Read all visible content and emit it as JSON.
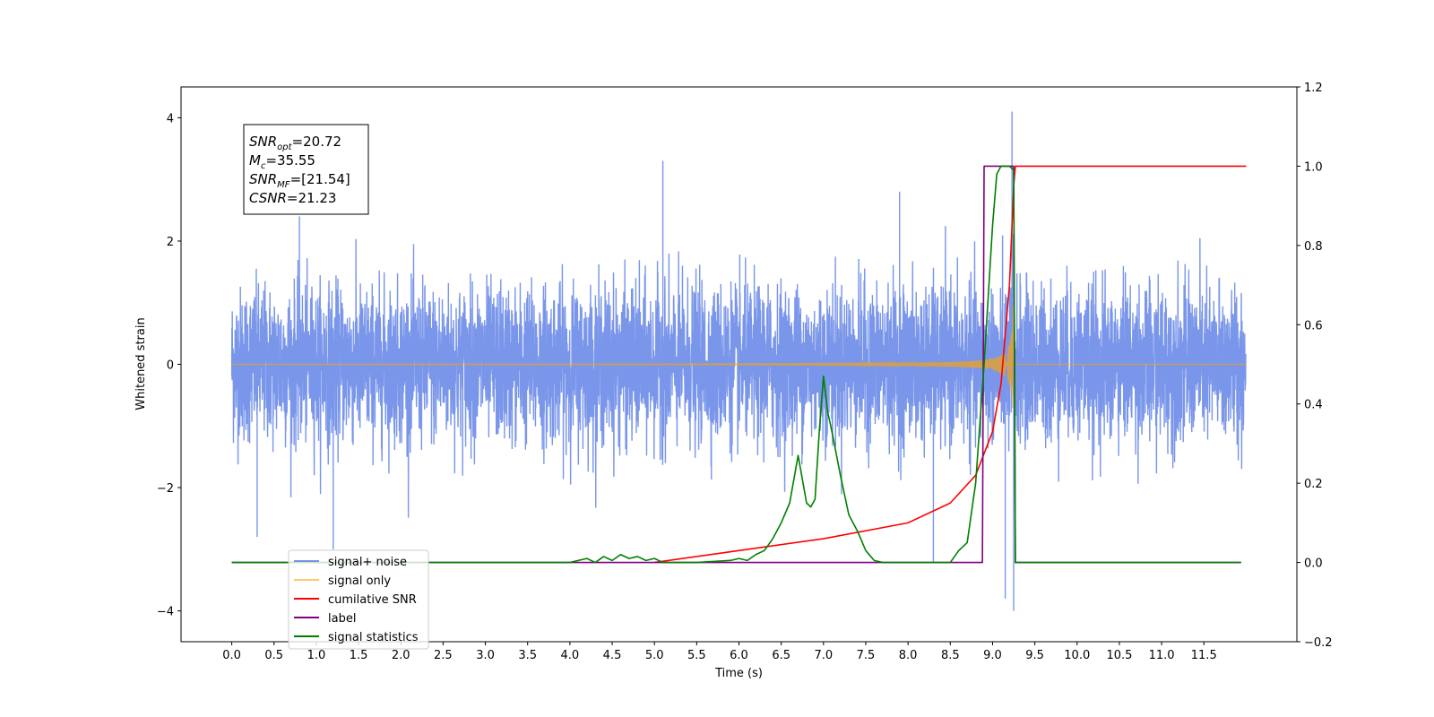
{
  "chart_data": {
    "type": "line",
    "xlabel": "Time (s)",
    "ylabel_left": "Whitened strain",
    "ylabel_right": "",
    "xlim": [
      -0.6,
      12.6
    ],
    "ylim_left": [
      -4.5,
      4.5
    ],
    "ylim_right": [
      -0.2,
      1.2
    ],
    "x_ticks": [
      "0.0",
      "0.5",
      "1.0",
      "1.5",
      "2.0",
      "2.5",
      "3.0",
      "3.5",
      "4.0",
      "4.5",
      "5.0",
      "5.5",
      "6.0",
      "6.5",
      "7.0",
      "7.5",
      "8.0",
      "8.5",
      "9.0",
      "9.5",
      "10.0",
      "10.5",
      "11.0",
      "11.5"
    ],
    "y_left_ticks": [
      "4",
      "2",
      "0",
      "−2",
      "−4"
    ],
    "y_right_ticks": [
      "1.2",
      "1.0",
      "0.8",
      "0.6",
      "0.4",
      "0.2",
      "0.0",
      "−0.2"
    ],
    "grid": false,
    "legend_position": "lower-left",
    "annotation": [
      {
        "base": "SNR",
        "sub": "opt",
        "value": "=20.72"
      },
      {
        "base": "M",
        "sub": "c",
        "value": "=35.55"
      },
      {
        "base": "SNR",
        "sub": "MF",
        "value": "=[21.54]"
      },
      {
        "base": "CSNR",
        "sub": "",
        "value": "=21.23"
      }
    ],
    "series": [
      {
        "name": "signal+ noise",
        "color": "#4169e1",
        "axis": "left",
        "description": "whitened noisy strain, roughly normally distributed with std about 0.7",
        "peaks": [
          [
            0.3,
            -2.8
          ],
          [
            0.8,
            2.4
          ],
          [
            1.2,
            -3.0
          ],
          [
            5.1,
            3.3
          ],
          [
            7.9,
            2.8
          ],
          [
            8.3,
            -3.2
          ],
          [
            9.15,
            -3.8
          ],
          [
            9.23,
            4.1
          ],
          [
            9.25,
            -4.0
          ]
        ]
      },
      {
        "name": "signal only",
        "color": "#ffa500",
        "axis": "left",
        "description": "chirp waveform with amplitude growing to merger near 9.25 s"
      },
      {
        "name": "cumilative SNR",
        "color": "#ff0000",
        "axis": "right",
        "x": [
          5.0,
          6.0,
          7.0,
          8.0,
          8.5,
          8.8,
          9.0,
          9.1,
          9.2,
          9.25,
          9.27,
          12.0
        ],
        "y": [
          0.0,
          0.03,
          0.06,
          0.1,
          0.15,
          0.22,
          0.33,
          0.45,
          0.7,
          0.95,
          1.0,
          1.0
        ]
      },
      {
        "name": "label",
        "color": "#800080",
        "axis": "right",
        "x": [
          0.0,
          8.88,
          8.9,
          9.25,
          9.27,
          11.94
        ],
        "y": [
          0.0,
          0.0,
          1.0,
          1.0,
          0.0,
          0.0
        ]
      },
      {
        "name": "signal statistics",
        "color": "#008000",
        "axis": "right",
        "x": [
          0.0,
          4.0,
          4.2,
          4.3,
          4.4,
          4.5,
          4.6,
          4.7,
          4.8,
          4.9,
          5.0,
          5.1,
          5.5,
          5.9,
          6.0,
          6.1,
          6.2,
          6.3,
          6.4,
          6.5,
          6.6,
          6.7,
          6.8,
          6.85,
          6.9,
          6.95,
          7.0,
          7.05,
          7.1,
          7.2,
          7.3,
          7.4,
          7.5,
          7.6,
          7.7,
          8.0,
          8.5,
          8.6,
          8.7,
          8.8,
          8.9,
          9.0,
          9.05,
          9.1,
          9.15,
          9.2,
          9.25,
          9.27,
          9.3,
          11.94
        ],
        "y": [
          0.0,
          0.0,
          0.01,
          0.0,
          0.015,
          0.005,
          0.02,
          0.01,
          0.015,
          0.005,
          0.01,
          0.0,
          0.0,
          0.005,
          0.01,
          0.005,
          0.02,
          0.03,
          0.06,
          0.1,
          0.15,
          0.27,
          0.15,
          0.14,
          0.16,
          0.33,
          0.47,
          0.38,
          0.33,
          0.22,
          0.12,
          0.08,
          0.03,
          0.005,
          0.0,
          0.0,
          0.0,
          0.03,
          0.05,
          0.2,
          0.5,
          0.85,
          0.98,
          1.0,
          1.0,
          1.0,
          0.99,
          0.0,
          0.0,
          0.0
        ]
      }
    ]
  }
}
